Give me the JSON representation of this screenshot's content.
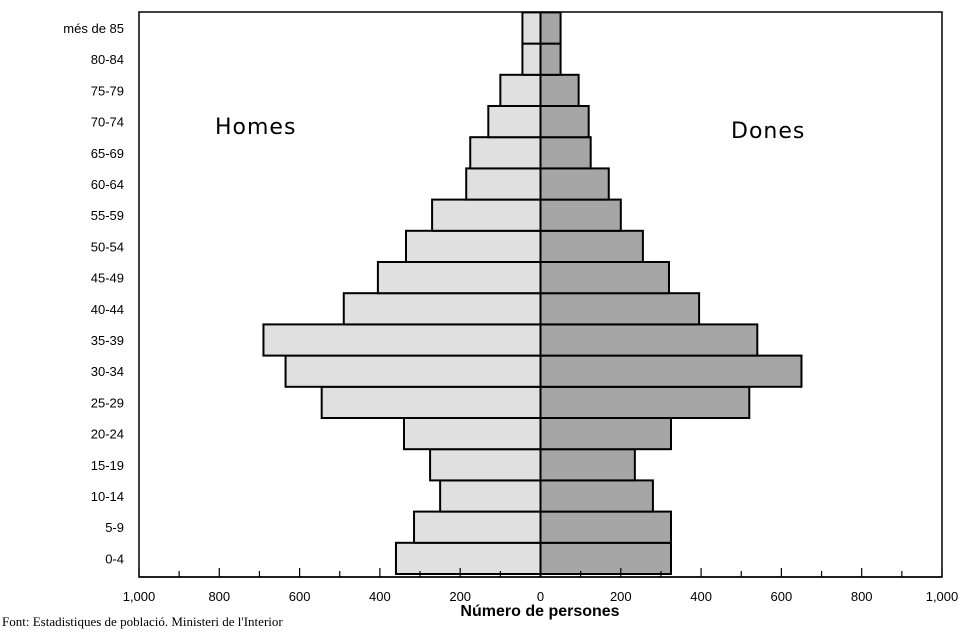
{
  "chart_data": {
    "type": "bar",
    "subtype": "population-pyramid",
    "categories": [
      "0-4",
      "5-9",
      "10-14",
      "15-19",
      "20-24",
      "25-29",
      "30-34",
      "35-39",
      "40-44",
      "45-49",
      "50-54",
      "55-59",
      "60-64",
      "65-69",
      "70-74",
      "75-79",
      "80-84",
      "més de 85"
    ],
    "series": [
      {
        "name": "Homes",
        "values": [
          360,
          315,
          250,
          275,
          340,
          545,
          635,
          690,
          490,
          405,
          335,
          270,
          185,
          175,
          130,
          100,
          45,
          45
        ],
        "color": "#e0e0e0"
      },
      {
        "name": "Dones",
        "values": [
          325,
          325,
          280,
          235,
          325,
          520,
          650,
          540,
          395,
          320,
          255,
          200,
          170,
          125,
          120,
          95,
          50,
          50
        ],
        "color": "#a6a6a6"
      }
    ],
    "xlabel": "Número de persones",
    "xlim": [
      -1000,
      1000
    ],
    "xticks": [
      -1000,
      -800,
      -600,
      -400,
      -200,
      0,
      200,
      400,
      600,
      800,
      1000
    ],
    "xtick_labels": [
      "1,000",
      "800",
      "600",
      "400",
      "200",
      "0",
      "200",
      "400",
      "600",
      "800",
      "1,000"
    ],
    "grid": false,
    "legend": "in-plot side labels"
  },
  "source": "Font: Estadistiques de població. Ministeri de l'Interior"
}
